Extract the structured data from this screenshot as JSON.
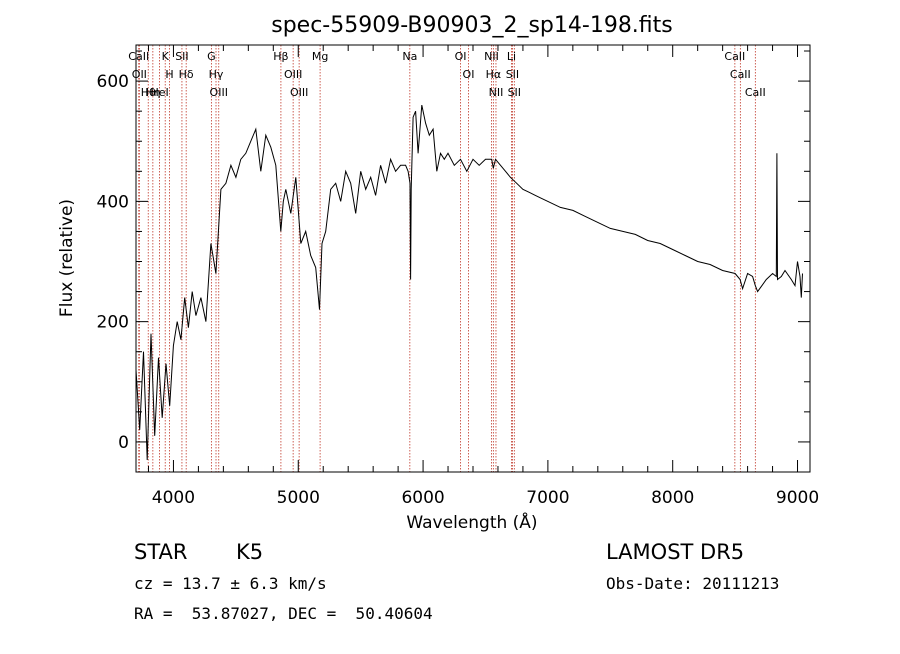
{
  "chart_data": {
    "type": "line",
    "title": "spec-55909-B90903_2_sp14-198.fits",
    "xlabel": "Wavelength (Å)",
    "ylabel": "Flux (relative)",
    "xlim": [
      3700,
      9100
    ],
    "ylim": [
      -50,
      660
    ],
    "xticks": [
      4000,
      5000,
      6000,
      7000,
      8000,
      9000
    ],
    "yticks": [
      0,
      200,
      400,
      600
    ],
    "grid": false,
    "series": [
      {
        "color": "#000000",
        "x": [
          3700,
          3730,
          3760,
          3790,
          3820,
          3850,
          3880,
          3910,
          3940,
          3970,
          4000,
          4030,
          4060,
          4090,
          4120,
          4150,
          4180,
          4220,
          4260,
          4300,
          4340,
          4380,
          4420,
          4460,
          4500,
          4540,
          4580,
          4620,
          4660,
          4700,
          4740,
          4780,
          4820,
          4860,
          4880,
          4900,
          4940,
          4980,
          5020,
          5060,
          5100,
          5140,
          5170,
          5190,
          5220,
          5260,
          5300,
          5340,
          5380,
          5420,
          5460,
          5500,
          5540,
          5580,
          5620,
          5660,
          5700,
          5740,
          5780,
          5820,
          5860,
          5880,
          5895,
          5900,
          5905,
          5920,
          5940,
          5960,
          5990,
          6020,
          6050,
          6080,
          6110,
          6140,
          6170,
          6200,
          6250,
          6300,
          6350,
          6400,
          6450,
          6500,
          6550,
          6563,
          6580,
          6620,
          6660,
          6700,
          6750,
          6800,
          6850,
          6900,
          6950,
          7000,
          7100,
          7200,
          7300,
          7400,
          7500,
          7600,
          7700,
          7800,
          7900,
          8000,
          8100,
          8200,
          8300,
          8400,
          8500,
          8540,
          8560,
          8600,
          8640,
          8662,
          8680,
          8750,
          8800,
          8830,
          8835,
          8840,
          8870,
          8900,
          8950,
          8980,
          9000,
          9020,
          9030,
          9040
        ],
        "y": [
          120,
          20,
          150,
          -30,
          180,
          10,
          140,
          40,
          130,
          60,
          160,
          200,
          170,
          240,
          190,
          250,
          210,
          240,
          200,
          330,
          280,
          420,
          430,
          460,
          440,
          470,
          480,
          500,
          520,
          450,
          510,
          490,
          460,
          350,
          400,
          420,
          380,
          440,
          330,
          350,
          310,
          290,
          220,
          330,
          350,
          420,
          430,
          400,
          450,
          430,
          380,
          450,
          420,
          440,
          410,
          460,
          430,
          470,
          450,
          460,
          460,
          450,
          430,
          270,
          420,
          540,
          550,
          480,
          560,
          530,
          510,
          520,
          450,
          480,
          470,
          480,
          460,
          470,
          450,
          470,
          460,
          470,
          470,
          455,
          470,
          460,
          450,
          440,
          430,
          420,
          415,
          410,
          405,
          400,
          390,
          385,
          375,
          365,
          355,
          350,
          345,
          335,
          330,
          320,
          310,
          300,
          295,
          285,
          280,
          270,
          255,
          280,
          275,
          260,
          250,
          270,
          280,
          275,
          480,
          270,
          275,
          285,
          270,
          260,
          300,
          275,
          240,
          280
        ]
      }
    ],
    "spectral_lines": [
      {
        "label": "Hθ",
        "x": 3798
      },
      {
        "label": "OII",
        "x": 3727
      },
      {
        "label": "CaII",
        "x": 3722
      },
      {
        "label": "Hη",
        "x": 3835
      },
      {
        "label": "K",
        "x": 3934
      },
      {
        "label": "HeI",
        "x": 3889
      },
      {
        "label": "H",
        "x": 3969
      },
      {
        "label": "Hδ",
        "x": 4102
      },
      {
        "label": "SII",
        "x": 4068
      },
      {
        "label": "OIII",
        "x": 4363
      },
      {
        "label": "Hγ",
        "x": 4341
      },
      {
        "label": "G",
        "x": 4304
      },
      {
        "label": "Hβ",
        "x": 4861
      },
      {
        "label": "OIII",
        "x": 5007
      },
      {
        "label": "OIII",
        "x": 4959
      },
      {
        "label": "Mg",
        "x": 5175
      },
      {
        "label": "Na",
        "x": 5894
      },
      {
        "label": "OI",
        "x": 6300
      },
      {
        "label": "OI",
        "x": 6364
      },
      {
        "label": "Hα",
        "x": 6563
      },
      {
        "label": "NII",
        "x": 6548
      },
      {
        "label": "NII",
        "x": 6584
      },
      {
        "label": "SII",
        "x": 6716
      },
      {
        "label": "Li",
        "x": 6708
      },
      {
        "label": "SII",
        "x": 6731
      },
      {
        "label": "CaII",
        "x": 8542
      },
      {
        "label": "CaII",
        "x": 8498
      },
      {
        "label": "CaII",
        "x": 8662
      }
    ]
  },
  "info": {
    "class": "STAR",
    "subclass": "K5",
    "survey": "LAMOST DR5",
    "cz": "cz = 13.7 ± 6.3 km/s",
    "obs_date": "Obs-Date: 20111213",
    "coords": "RA =  53.87027, DEC =  50.40604"
  }
}
